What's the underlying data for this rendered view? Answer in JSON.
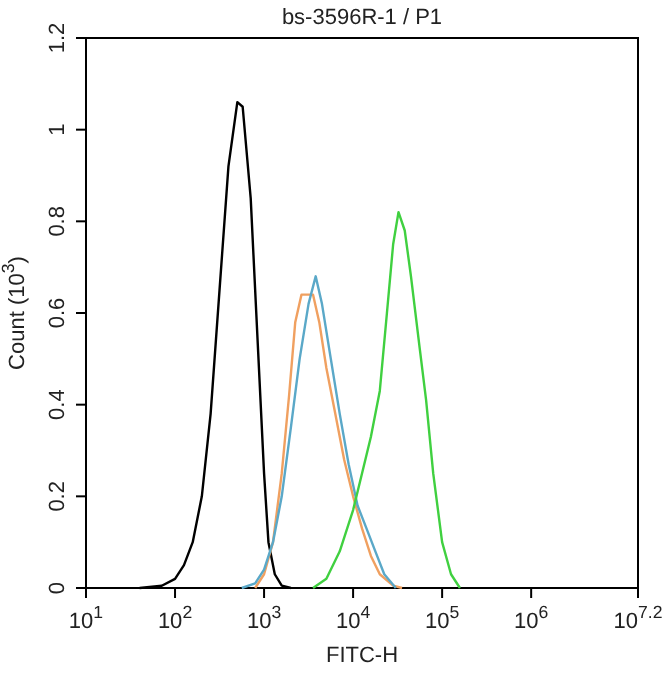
{
  "chart_data": {
    "type": "line",
    "title": "bs-3596R-1 / P1",
    "xlabel": "FITC-H",
    "ylabel": "Count (10$^{3}$)",
    "log": "x",
    "xlim": [
      10,
      15848932
    ],
    "xticks": [
      {
        "value": 10,
        "label": "10$^{1}$"
      },
      {
        "value": 100,
        "label": "10$^{2}$"
      },
      {
        "value": 1000,
        "label": "10$^{3}$"
      },
      {
        "value": 10000,
        "label": "10$^{4}$"
      },
      {
        "value": 100000,
        "label": "10$^{5}$"
      },
      {
        "value": 1000000,
        "label": "10$^{6}$"
      },
      {
        "value": 15848932,
        "label": "10$^{7.2}$"
      }
    ],
    "ylim": [
      0,
      1.2
    ],
    "yticks": [
      0,
      0.2,
      0.4,
      0.6,
      0.8,
      1,
      1.2
    ],
    "grid": false,
    "marker": "none",
    "line_style": "solid",
    "series": [
      {
        "color": "#000000",
        "x": [
          40,
          71,
          100,
          126,
          158,
          200,
          251,
          316,
          398,
          501,
          575,
          708,
          851,
          1000,
          1120,
          1320,
          1580,
          2000
        ],
        "values": [
          0,
          0.005,
          0.02,
          0.05,
          0.1,
          0.2,
          0.38,
          0.65,
          0.92,
          1.06,
          1.05,
          0.85,
          0.53,
          0.25,
          0.1,
          0.03,
          0.005,
          0
        ]
      },
      {
        "color": "#f0a060",
        "x": [
          794,
          1000,
          1260,
          1580,
          1910,
          2240,
          2630,
          3550,
          4170,
          5010,
          6310,
          7940,
          10000,
          12590,
          15850,
          19950,
          28180,
          35480
        ],
        "values": [
          0,
          0.03,
          0.1,
          0.25,
          0.42,
          0.58,
          0.64,
          0.64,
          0.58,
          0.48,
          0.38,
          0.28,
          0.2,
          0.13,
          0.07,
          0.03,
          0.005,
          0
        ]
      },
      {
        "color": "#5aa8c8",
        "x": [
          562,
          794,
          1000,
          1260,
          1580,
          2000,
          2510,
          3160,
          3800,
          4470,
          5620,
          7080,
          8910,
          11220,
          14130,
          17780,
          22390,
          30200
        ],
        "values": [
          0,
          0.01,
          0.04,
          0.1,
          0.2,
          0.35,
          0.5,
          0.62,
          0.68,
          0.62,
          0.5,
          0.38,
          0.27,
          0.18,
          0.13,
          0.08,
          0.03,
          0
        ]
      },
      {
        "color": "#40d040",
        "x": [
          3550,
          5010,
          7080,
          10000,
          12590,
          15850,
          19950,
          23990,
          28180,
          32360,
          38020,
          44670,
          56230,
          66070,
          79430,
          100000,
          125900,
          158500
        ],
        "values": [
          0,
          0.02,
          0.08,
          0.17,
          0.25,
          0.33,
          0.43,
          0.6,
          0.75,
          0.82,
          0.78,
          0.68,
          0.52,
          0.41,
          0.25,
          0.1,
          0.03,
          0
        ]
      }
    ]
  }
}
